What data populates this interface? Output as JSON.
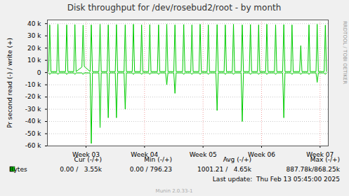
{
  "chart_data": {
    "type": "line",
    "title": "Disk throughput for /dev/rosebud2/root - by month",
    "y_label": "Pr second read (-) / write (+)",
    "x": [
      2.36,
      2.38,
      2.4,
      2.5,
      2.52,
      2.54,
      2.65,
      2.67,
      2.69,
      2.79,
      2.81,
      2.83,
      2.93,
      2.95,
      2.97,
      3.07,
      3.09,
      3.11,
      3.22,
      3.24,
      3.26,
      3.36,
      3.38,
      3.4,
      3.5,
      3.52,
      3.54,
      3.65,
      3.67,
      3.69,
      3.79,
      3.81,
      3.83,
      3.93,
      3.95,
      3.97,
      4.07,
      4.09,
      4.11,
      4.22,
      4.24,
      4.26,
      4.36,
      4.38,
      4.4,
      4.5,
      4.52,
      4.54,
      4.65,
      4.67,
      4.69,
      4.79,
      4.81,
      4.83,
      4.93,
      4.95,
      4.97,
      5.07,
      5.09,
      5.11,
      5.22,
      5.24,
      5.26,
      5.36,
      5.38,
      5.4,
      5.5,
      5.52,
      5.54,
      5.65,
      5.67,
      5.69,
      5.79,
      5.81,
      5.83,
      5.93,
      5.95,
      5.97,
      6.07,
      6.09,
      6.11,
      6.22,
      6.24,
      6.26,
      6.36,
      6.38,
      6.4,
      6.5,
      6.52,
      6.54,
      6.65,
      6.67,
      6.69,
      6.79,
      6.81,
      6.83,
      6.93,
      6.95,
      6.97,
      7.07,
      7.09,
      7.11
    ],
    "series": [
      {
        "name": "Bytes",
        "color": "#00cc00",
        "values": [
          800,
          39000,
          800,
          800,
          39500,
          800,
          800,
          39000,
          800,
          800,
          39200,
          800,
          4500,
          38800,
          5000,
          800,
          39000,
          800,
          800,
          39500,
          800,
          800,
          39000,
          800,
          800,
          39200,
          800,
          800,
          39000,
          800,
          800,
          39500,
          800,
          800,
          39000,
          800,
          800,
          39200,
          800,
          800,
          39000,
          800,
          800,
          39500,
          800,
          800,
          39000,
          800,
          800,
          39300,
          800,
          800,
          39000,
          800,
          800,
          39500,
          800,
          800,
          39000,
          800,
          800,
          39200,
          800,
          800,
          39000,
          800,
          800,
          39500,
          800,
          800,
          39000,
          800,
          800,
          39300,
          800,
          800,
          39000,
          800,
          800,
          39500,
          800,
          800,
          39000,
          800,
          800,
          39200,
          800,
          800,
          39000,
          800,
          800,
          22000,
          800,
          800,
          39000,
          800,
          800,
          39500,
          800,
          800,
          38800,
          800
        ]
      },
      {
        "name": "Bytes",
        "color": "#00cc00",
        "values": [
          -300,
          -1500,
          -300,
          -300,
          -1500,
          -300,
          -300,
          -1500,
          -300,
          -300,
          -1500,
          -300,
          -300,
          -1500,
          -300,
          -300,
          -58000,
          -300,
          -300,
          -45000,
          -300,
          -300,
          -37000,
          -300,
          -300,
          -37000,
          -300,
          -300,
          -30000,
          -300,
          -300,
          -1500,
          -300,
          -300,
          -1500,
          -300,
          -300,
          -1500,
          -300,
          -300,
          -1500,
          -300,
          -300,
          -10000,
          -300,
          -300,
          -17000,
          -300,
          -300,
          -1500,
          -300,
          -300,
          -1500,
          -300,
          -300,
          -1500,
          -300,
          -300,
          -1500,
          -300,
          -300,
          -31000,
          -300,
          -300,
          -1500,
          -300,
          -300,
          -1500,
          -300,
          -300,
          -40000,
          -300,
          -300,
          -1500,
          -300,
          -300,
          -1500,
          -300,
          -300,
          -1500,
          -300,
          -300,
          -1500,
          -300,
          -300,
          -37000,
          -300,
          -300,
          -1500,
          -300,
          -300,
          -1500,
          -300,
          -300,
          -1500,
          -300,
          -300,
          -8000,
          -300,
          -300,
          -1500,
          -300
        ]
      }
    ],
    "xlim": [
      2.34,
      7.14
    ],
    "xticks": [
      {
        "value": 3,
        "label": "Week 03"
      },
      {
        "value": 4,
        "label": "Week 04"
      },
      {
        "value": 5,
        "label": "Week 05"
      },
      {
        "value": 6,
        "label": "Week 06"
      },
      {
        "value": 7,
        "label": "Week 07"
      }
    ],
    "ylim": [
      -60000,
      43000
    ],
    "yticks": [
      {
        "value": -60000,
        "label": "-60 k"
      },
      {
        "value": -50000,
        "label": "-50 k"
      },
      {
        "value": -40000,
        "label": "-40 k"
      },
      {
        "value": -30000,
        "label": "-30 k"
      },
      {
        "value": -20000,
        "label": "-20 k"
      },
      {
        "value": -10000,
        "label": "-10 k"
      },
      0,
      {
        "value": 10000,
        "label": "10 k"
      },
      {
        "value": 20000,
        "label": "20 k"
      },
      {
        "value": 30000,
        "label": "30 k"
      },
      {
        "value": 40000,
        "label": "40 k"
      }
    ],
    "grid": true,
    "legend_table": {
      "columns": [
        "Cur (-/+)",
        "Min (-/+)",
        "Avg (-/+)",
        "Max (-/+)"
      ],
      "rows": [
        {
          "name": "Bytes",
          "cells": [
            "0.00 /   3.55k",
            "0.00 / 796.23",
            "1001.21 /   4.65k",
            "887.78k/868.25k"
          ]
        }
      ]
    },
    "footer": "Last update:  Thu Feb 13 05:45:00 2025",
    "credit": "Munin 2.0.33-1",
    "side_text": "RRDTOOL / TOBI OETIKER"
  }
}
